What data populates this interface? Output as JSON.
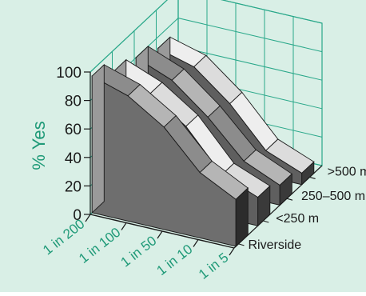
{
  "colors": {
    "background": "#d9efe6",
    "grid": "#2aa88a",
    "axis": "#1a1a1a",
    "accent_text": "#1f9a78",
    "series_shades": [
      "#8a8a8a",
      "#e6e6e6",
      "#7c7c7c",
      "#f2f2f2"
    ]
  },
  "chart_data": {
    "type": "3d-area",
    "title": "",
    "xlabel": "",
    "ylabel": "% Yes",
    "ylim": [
      0,
      100
    ],
    "yticks": [
      "0",
      "20",
      "40",
      "60",
      "80",
      "100"
    ],
    "categories": [
      "1 in 200",
      "1 in 100",
      "1 in 50",
      "1 in 10",
      "1 in 5"
    ],
    "series_labels": [
      ">500 m",
      "250–500 m",
      "<250 m",
      "Riverside"
    ],
    "series": [
      {
        "name": "Riverside",
        "values": [
          96,
          88,
          72,
          46,
          33
        ]
      },
      {
        "name": "<250 m",
        "values": [
          85,
          75,
          58,
          30,
          20
        ]
      },
      {
        "name": "250–500 m",
        "values": [
          80,
          70,
          50,
          25,
          14
        ]
      },
      {
        "name": ">500 m",
        "values": [
          72,
          65,
          45,
          18,
          8
        ]
      }
    ],
    "grid": true
  }
}
